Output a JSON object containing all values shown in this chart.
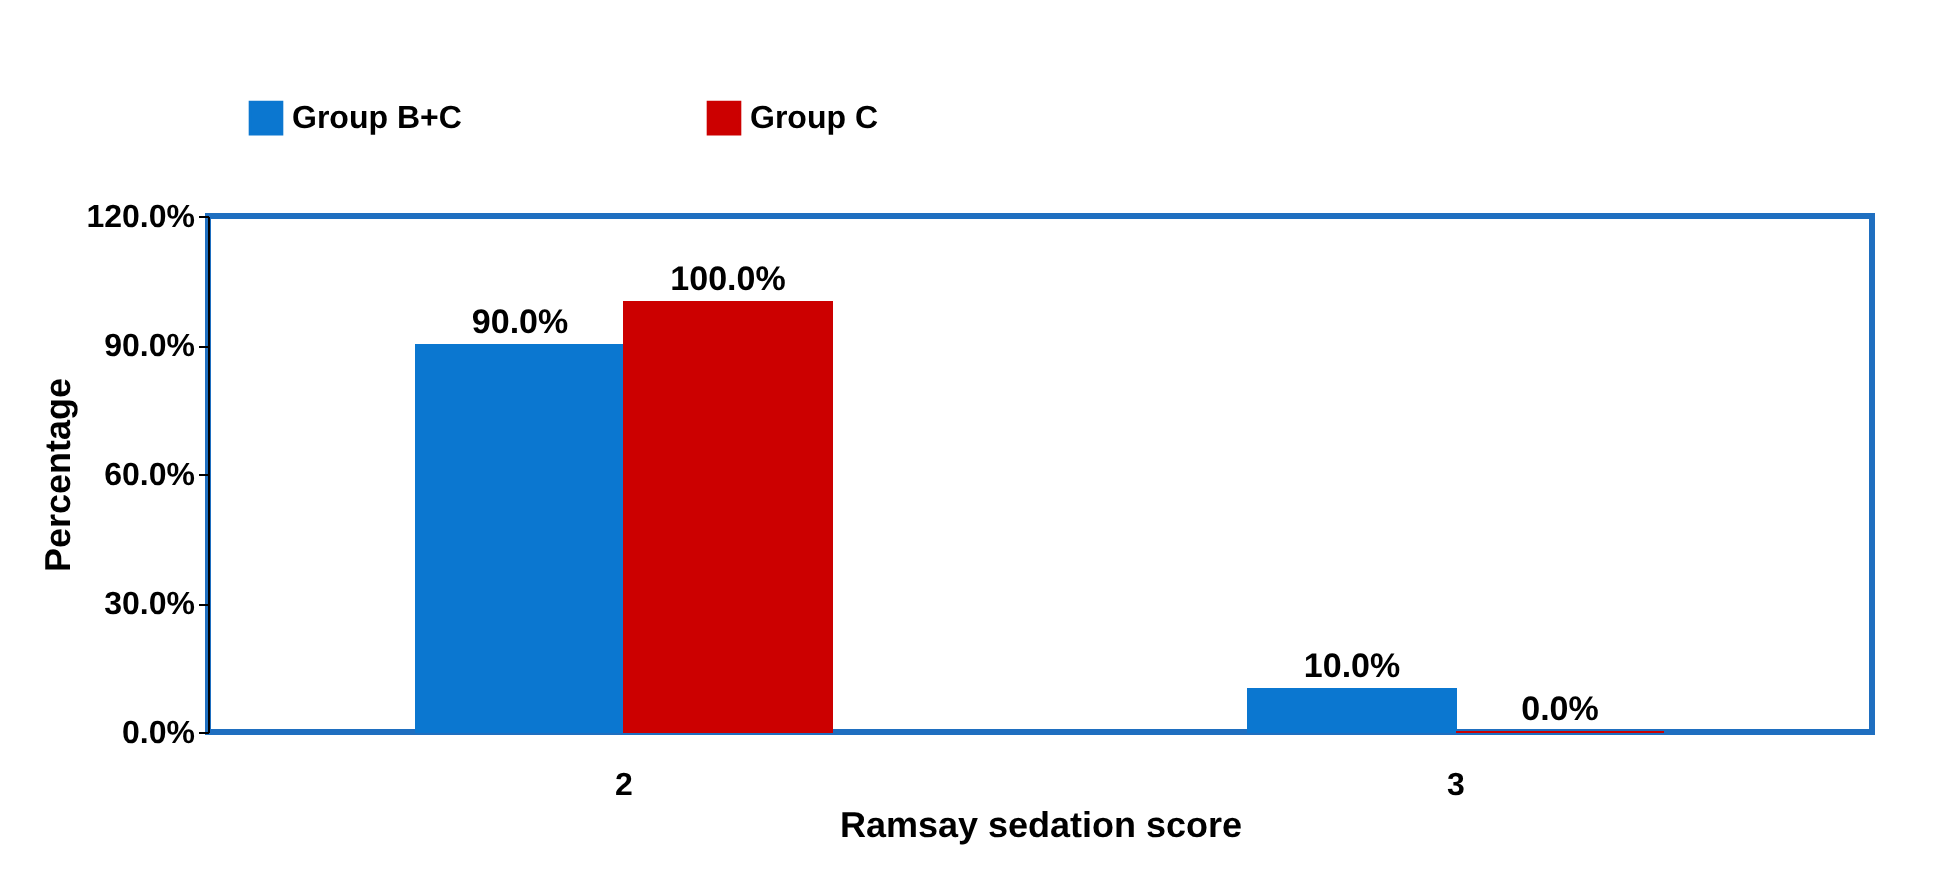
{
  "chart_data": {
    "type": "bar",
    "xlabel": "Ramsay sedation score",
    "ylabel": "Percentage",
    "categories": [
      "2",
      "3"
    ],
    "series": [
      {
        "name": "Group B+C",
        "color": "#0b77d0",
        "values": [
          90,
          10
        ],
        "value_labels": [
          "90.0%",
          "10.0%"
        ]
      },
      {
        "name": "Group C",
        "color": "#cc0000",
        "values": [
          100,
          0
        ],
        "value_labels": [
          "100.0%",
          "0.0%"
        ]
      }
    ],
    "ylim": [
      0,
      120
    ],
    "yticks": [
      {
        "value": 0,
        "label": "0.0%"
      },
      {
        "value": 30,
        "label": "30.0%"
      },
      {
        "value": 60,
        "label": "60.0%"
      },
      {
        "value": 90,
        "label": "90.0%"
      },
      {
        "value": 120,
        "label": "120.0%"
      }
    ],
    "grid": false,
    "legend": "top"
  }
}
